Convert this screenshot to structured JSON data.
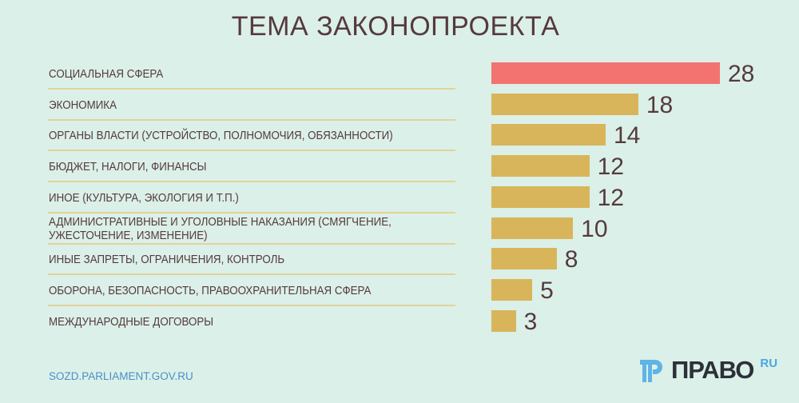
{
  "chart_data": {
    "type": "bar",
    "orientation": "horizontal",
    "title": "ТЕМА ЗАКОНОПРОЕКТА",
    "categories": [
      "СОЦИАЛЬНАЯ СФЕРА",
      "ЭКОНОМИКА",
      "ОРГАНЫ ВЛАСТИ (УСТРОЙСТВО, ПОЛНОМОЧИЯ, ОБЯЗАННОСТИ)",
      "БЮДЖЕТ, НАЛОГИ, ФИНАНСЫ",
      "ИНОЕ (КУЛЬТУРА, ЭКОЛОГИЯ И Т.П.)",
      "АДМИНИСТРАТИВНЫЕ И УГОЛОВНЫЕ НАКАЗАНИЯ (СМЯГЧЕНИЕ, УЖЕСТОЧЕНИЕ, ИЗМЕНЕНИЕ)",
      "ИНЫЕ ЗАПРЕТЫ, ОГРАНИЧЕНИЯ, КОНТРОЛЬ",
      "ОБОРОНА, БЕЗОПАСНОСТЬ, ПРАВООХРАНИТЕЛЬНАЯ СФЕРА",
      "МЕЖДУНАРОДНЫЕ ДОГОВОРЫ"
    ],
    "values": [
      28,
      18,
      14,
      12,
      12,
      10,
      8,
      5,
      3
    ],
    "value_labels": [
      "28",
      "18",
      "14",
      "12",
      "12",
      "10",
      "8",
      "5",
      "3"
    ],
    "xlim": [
      0,
      28
    ],
    "grid": false,
    "colors": {
      "highlight": "#f37370",
      "default": "#d8b55a"
    }
  },
  "footer": {
    "source": "SOZD.PARLIAMENT.GOV.RU"
  },
  "logo": {
    "name": "ПРАВО",
    "suffix": "RU",
    "color": "#2c3038",
    "accent": "#4aa7e0"
  },
  "colors": {
    "background": "#dbf0e8",
    "text": "#553a3e",
    "separator": "#e3d398"
  }
}
